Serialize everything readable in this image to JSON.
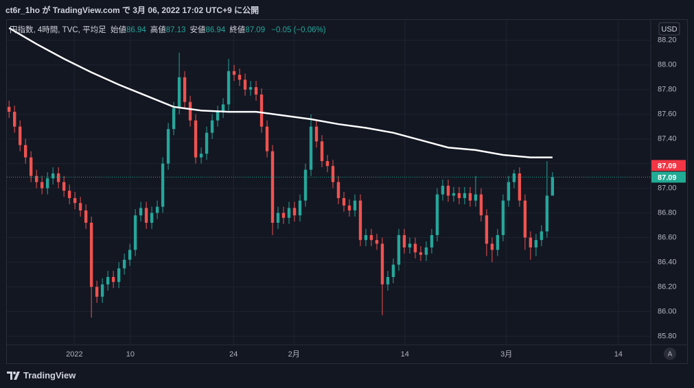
{
  "header": "ct6r_1ho が TradingView.com で 3月 06, 2022 17:02 UTC+9 に公開",
  "footer": "TradingView",
  "chart_data": {
    "type": "candlestick",
    "currency": "USD",
    "scale_mode": "A",
    "legend": {
      "title": "円指数, 4時間, TVC, 平均足",
      "items": [
        {
          "label": "始値",
          "value": 86.94
        },
        {
          "label": "高値",
          "value": 87.13
        },
        {
          "label": "安値",
          "value": 86.94
        },
        {
          "label": "終値",
          "value": 87.09
        }
      ],
      "change": "−0.05 (−0.06%)"
    },
    "up_color": "#26a69a",
    "down_color": "#ef5350",
    "open": [
      87.66,
      87.62,
      87.5,
      87.35,
      87.25,
      87.1,
      87.05,
      87.0,
      87.08,
      87.12,
      87.05,
      86.98,
      86.92,
      86.88,
      86.82,
      86.72,
      86.2,
      86.12,
      86.22,
      86.28,
      86.24,
      86.35,
      86.42,
      86.5,
      86.78,
      86.84,
      86.72,
      86.8,
      86.85,
      87.2,
      87.48,
      87.65,
      87.9,
      87.7,
      87.55,
      87.25,
      87.28,
      87.45,
      87.55,
      87.62,
      87.68,
      87.95,
      87.92,
      87.88,
      87.8,
      87.82,
      87.76,
      87.5,
      87.3,
      86.72,
      86.8,
      86.76,
      86.84,
      86.78,
      86.9,
      87.15,
      87.5,
      87.38,
      87.22,
      87.18,
      87.05,
      86.92,
      86.86,
      86.82,
      86.9,
      86.58,
      86.62,
      86.58,
      86.55,
      86.22,
      86.28,
      86.38,
      86.62,
      86.52,
      86.55,
      86.48,
      86.46,
      86.52,
      86.62,
      86.95,
      87.02,
      86.94,
      86.96,
      86.92,
      86.96,
      86.9,
      86.95,
      86.78,
      86.55,
      86.5,
      86.62,
      86.9,
      87.05,
      87.12,
      86.9,
      86.6,
      86.52,
      86.58,
      86.65,
      86.94
    ],
    "high": [
      87.71,
      87.67,
      87.55,
      87.4,
      87.3,
      87.15,
      87.1,
      87.13,
      87.17,
      87.17,
      87.1,
      87.03,
      86.97,
      86.93,
      86.87,
      86.77,
      86.25,
      86.27,
      86.33,
      86.33,
      86.4,
      86.47,
      86.55,
      86.83,
      86.89,
      86.89,
      86.85,
      86.9,
      87.25,
      87.53,
      87.7,
      88.1,
      87.95,
      87.75,
      87.6,
      87.33,
      87.5,
      87.6,
      87.67,
      87.73,
      88.05,
      88.0,
      87.97,
      87.93,
      87.87,
      87.87,
      87.81,
      87.55,
      87.35,
      86.85,
      86.85,
      86.89,
      86.89,
      86.95,
      87.2,
      87.6,
      87.55,
      87.43,
      87.27,
      87.23,
      87.1,
      86.97,
      86.91,
      86.95,
      86.95,
      86.67,
      86.67,
      86.63,
      86.6,
      86.33,
      86.43,
      86.67,
      86.67,
      86.6,
      86.6,
      86.53,
      86.57,
      86.67,
      87.0,
      87.07,
      87.07,
      87.01,
      87.01,
      87.01,
      87.01,
      87.1,
      87.0,
      86.83,
      86.6,
      86.67,
      86.95,
      87.1,
      87.15,
      87.17,
      86.95,
      86.65,
      86.63,
      86.7,
      87.22,
      87.13
    ],
    "low": [
      87.57,
      87.45,
      87.3,
      87.2,
      87.05,
      87.0,
      86.95,
      86.95,
      87.03,
      87.0,
      86.93,
      86.87,
      86.83,
      86.77,
      86.67,
      85.95,
      86.07,
      86.07,
      86.17,
      86.19,
      86.19,
      86.3,
      86.37,
      86.45,
      86.73,
      86.67,
      86.67,
      86.75,
      86.8,
      87.15,
      87.43,
      87.6,
      87.65,
      87.5,
      87.2,
      87.2,
      87.23,
      87.4,
      87.5,
      87.57,
      87.63,
      87.87,
      87.83,
      87.75,
      87.75,
      87.71,
      87.45,
      87.25,
      86.62,
      86.67,
      86.71,
      86.71,
      86.73,
      86.73,
      86.85,
      87.1,
      87.33,
      87.17,
      87.13,
      87.0,
      86.87,
      86.81,
      86.77,
      86.77,
      86.53,
      86.53,
      86.53,
      86.5,
      85.97,
      86.17,
      86.23,
      86.33,
      86.47,
      86.47,
      86.43,
      86.41,
      86.41,
      86.47,
      86.57,
      86.9,
      86.89,
      86.89,
      86.87,
      86.87,
      86.85,
      86.85,
      86.73,
      86.45,
      86.4,
      86.45,
      86.57,
      86.85,
      87.0,
      86.85,
      86.5,
      86.42,
      86.45,
      86.53,
      86.6,
      86.94
    ],
    "close": [
      87.62,
      87.5,
      87.35,
      87.25,
      87.1,
      87.05,
      87.0,
      87.08,
      87.12,
      87.05,
      86.98,
      86.92,
      86.88,
      86.82,
      86.72,
      86.2,
      86.12,
      86.22,
      86.28,
      86.24,
      86.35,
      86.42,
      86.5,
      86.78,
      86.84,
      86.72,
      86.8,
      86.85,
      87.2,
      87.48,
      87.65,
      87.9,
      87.7,
      87.55,
      87.25,
      87.28,
      87.45,
      87.55,
      87.62,
      87.68,
      87.95,
      87.92,
      87.88,
      87.8,
      87.82,
      87.76,
      87.5,
      87.3,
      86.72,
      86.8,
      86.76,
      86.84,
      86.78,
      86.9,
      87.15,
      87.5,
      87.38,
      87.22,
      87.18,
      87.05,
      86.92,
      86.86,
      86.82,
      86.9,
      86.58,
      86.62,
      86.58,
      86.55,
      86.22,
      86.28,
      86.38,
      86.62,
      86.52,
      86.55,
      86.48,
      86.46,
      86.52,
      86.62,
      86.95,
      87.02,
      86.94,
      86.96,
      86.92,
      86.96,
      86.9,
      86.95,
      86.78,
      86.55,
      86.5,
      86.62,
      86.9,
      87.05,
      87.12,
      86.9,
      86.6,
      86.52,
      86.58,
      86.65,
      86.94,
      87.09
    ],
    "ma": {
      "color": "#ffffff",
      "x": [
        0,
        5,
        10,
        15,
        20,
        25,
        30,
        35,
        40,
        45,
        50,
        55,
        60,
        65,
        70,
        75,
        80,
        85,
        90,
        95,
        99
      ],
      "values": [
        88.3,
        88.17,
        88.05,
        87.94,
        87.84,
        87.75,
        87.66,
        87.63,
        87.62,
        87.62,
        87.59,
        87.56,
        87.52,
        87.49,
        87.45,
        87.39,
        87.33,
        87.31,
        87.27,
        87.25,
        87.25
      ]
    },
    "price_labels": [
      {
        "value": 87.09,
        "label": "87.09",
        "color": "#f23645"
      },
      {
        "value": 87.09,
        "label": "87.09",
        "color": "#22ab94"
      }
    ],
    "xlim": [
      -0.4,
      116.9
    ],
    "xticks": [
      {
        "value": 11.9,
        "label": "2022"
      },
      {
        "value": 22.1,
        "label": "10"
      },
      {
        "value": 40.9,
        "label": "24"
      },
      {
        "value": 51.9,
        "label": "2月"
      },
      {
        "value": 72.1,
        "label": "14"
      },
      {
        "value": 90.6,
        "label": "3月"
      },
      {
        "value": 111,
        "label": "14"
      }
    ],
    "ylim": [
      85.73,
      88.36
    ],
    "yticks": [
      {
        "value": 85.8,
        "label": "85.80"
      },
      {
        "value": 86.0,
        "label": "86.00"
      },
      {
        "value": 86.2,
        "label": "86.20"
      },
      {
        "value": 86.4,
        "label": "86.40"
      },
      {
        "value": 86.6,
        "label": "86.60"
      },
      {
        "value": 86.8,
        "label": "86.80"
      },
      {
        "value": 87.0,
        "label": "87.00"
      },
      {
        "value": 87.2,
        "label": "87.20"
      },
      {
        "value": 87.4,
        "label": "87.40"
      },
      {
        "value": 87.6,
        "label": "87.60"
      },
      {
        "value": 87.8,
        "label": "87.80"
      },
      {
        "value": 88.0,
        "label": "88.00"
      },
      {
        "value": 88.2,
        "label": "88.20"
      }
    ],
    "grid": true
  }
}
